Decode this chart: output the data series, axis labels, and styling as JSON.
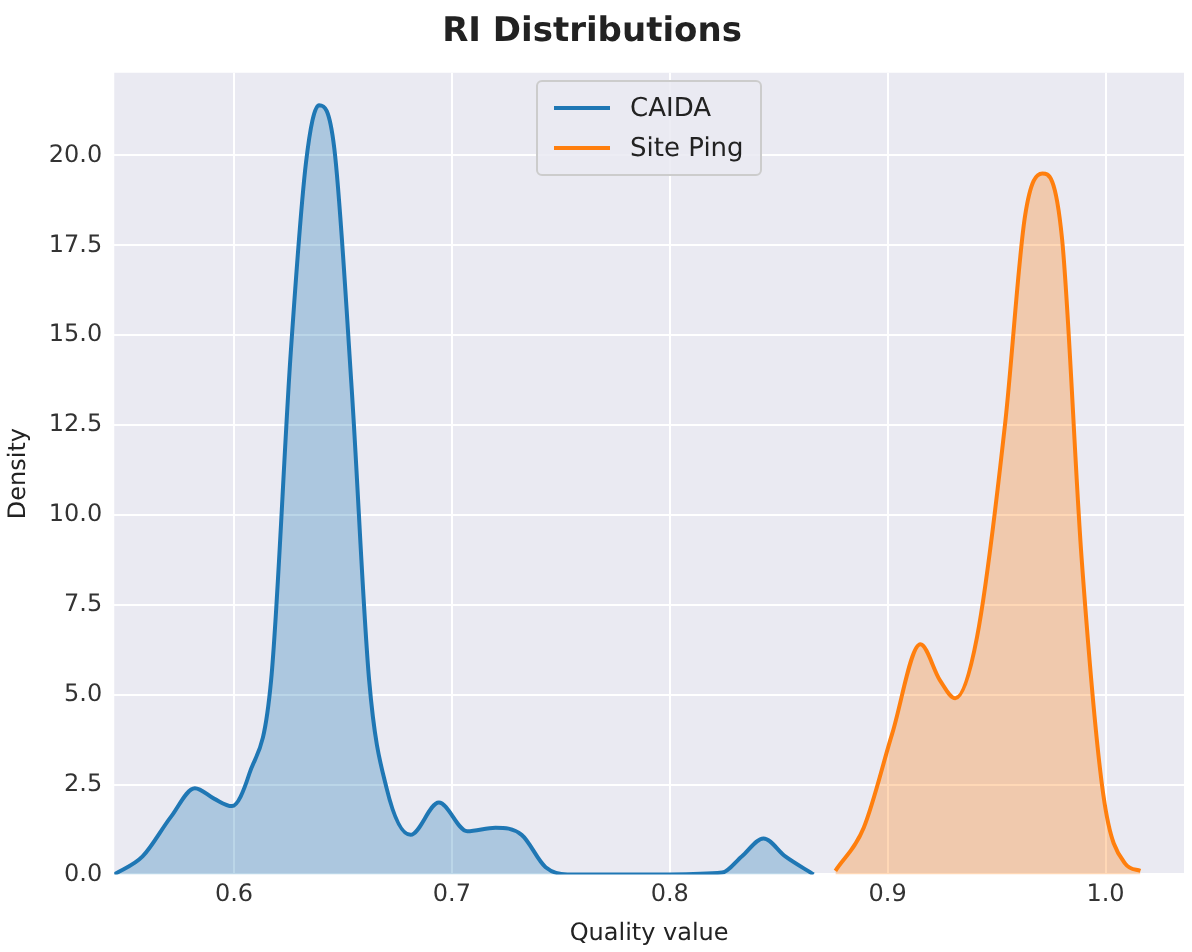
{
  "chart_data": {
    "type": "area",
    "title": "RI Distributions",
    "xlabel": "Quality value",
    "ylabel": "Density",
    "series": [
      {
        "name": "CAIDA",
        "color": "#1f77b4",
        "x": [
          0.545,
          0.558,
          0.571,
          0.582,
          0.591,
          0.599,
          0.607,
          0.617,
          0.626,
          0.633,
          0.639,
          0.646,
          0.654,
          0.662,
          0.67,
          0.681,
          0.694,
          0.707,
          0.72,
          0.732,
          0.743,
          0.753,
          0.8,
          0.824,
          0.833,
          0.843,
          0.853,
          0.866
        ],
        "values": [
          0,
          0.5,
          1.6,
          2.4,
          2.1,
          1.9,
          2.8,
          5.4,
          14.5,
          19.8,
          21.4,
          20.2,
          13.5,
          5.4,
          2.4,
          1.1,
          2.0,
          1.2,
          1.3,
          1.1,
          0.2,
          0,
          0,
          0.05,
          0.5,
          1.0,
          0.5,
          0
        ]
      },
      {
        "name": "Site Ping",
        "color": "#ff7f0e",
        "x": [
          0.876,
          0.889,
          0.902,
          0.915,
          0.924,
          0.931,
          0.941,
          0.954,
          0.963,
          0.971,
          0.98,
          0.989,
          0.999,
          1.009,
          1.016
        ],
        "values": [
          0.1,
          1.3,
          3.9,
          6.4,
          5.4,
          4.9,
          6.6,
          12.6,
          18.3,
          19.5,
          17.7,
          8.8,
          2.2,
          0.3,
          0.1
        ]
      }
    ],
    "xlim": [
      0.545,
      1.036
    ],
    "xticks": [
      0.6,
      0.7,
      0.8,
      0.9,
      {
        "value": 1.0,
        "label": "1.0"
      }
    ],
    "ylim": [
      0,
      22.3
    ],
    "yticks": [
      {
        "value": 0,
        "label": "0.0"
      },
      2.5,
      {
        "value": 5,
        "label": "5.0"
      },
      7.5,
      {
        "value": 10,
        "label": "10.0"
      },
      12.5,
      {
        "value": 15,
        "label": "15.0"
      },
      17.5,
      {
        "value": 20,
        "label": "20.0"
      }
    ],
    "grid": true,
    "legend": "top",
    "marker": "none"
  }
}
